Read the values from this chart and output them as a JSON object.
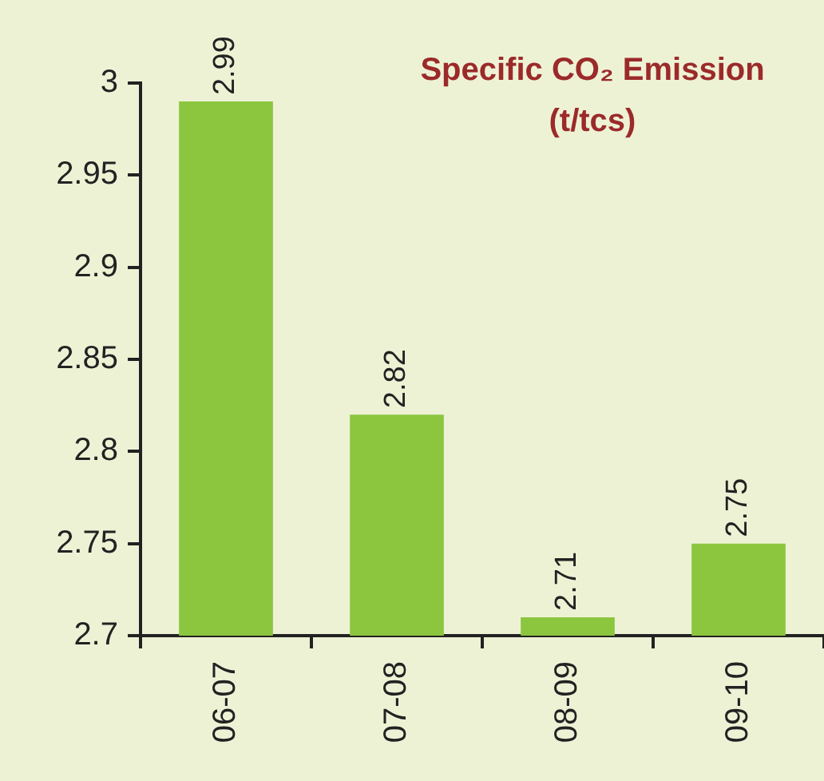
{
  "chart_data": {
    "type": "bar",
    "title": "Specific CO₂ Emission (t/tcs)",
    "categories": [
      "06-07",
      "07-08",
      "08-09",
      "09-10"
    ],
    "values": [
      2.99,
      2.82,
      2.71,
      2.75
    ],
    "color": "#8cc63f",
    "ylim": [
      2.7,
      3
    ],
    "yticks": [
      2.7,
      2.75,
      2.8,
      2.85,
      2.9,
      2.95,
      3
    ],
    "grid": false,
    "legend": false,
    "data_labels": true
  }
}
